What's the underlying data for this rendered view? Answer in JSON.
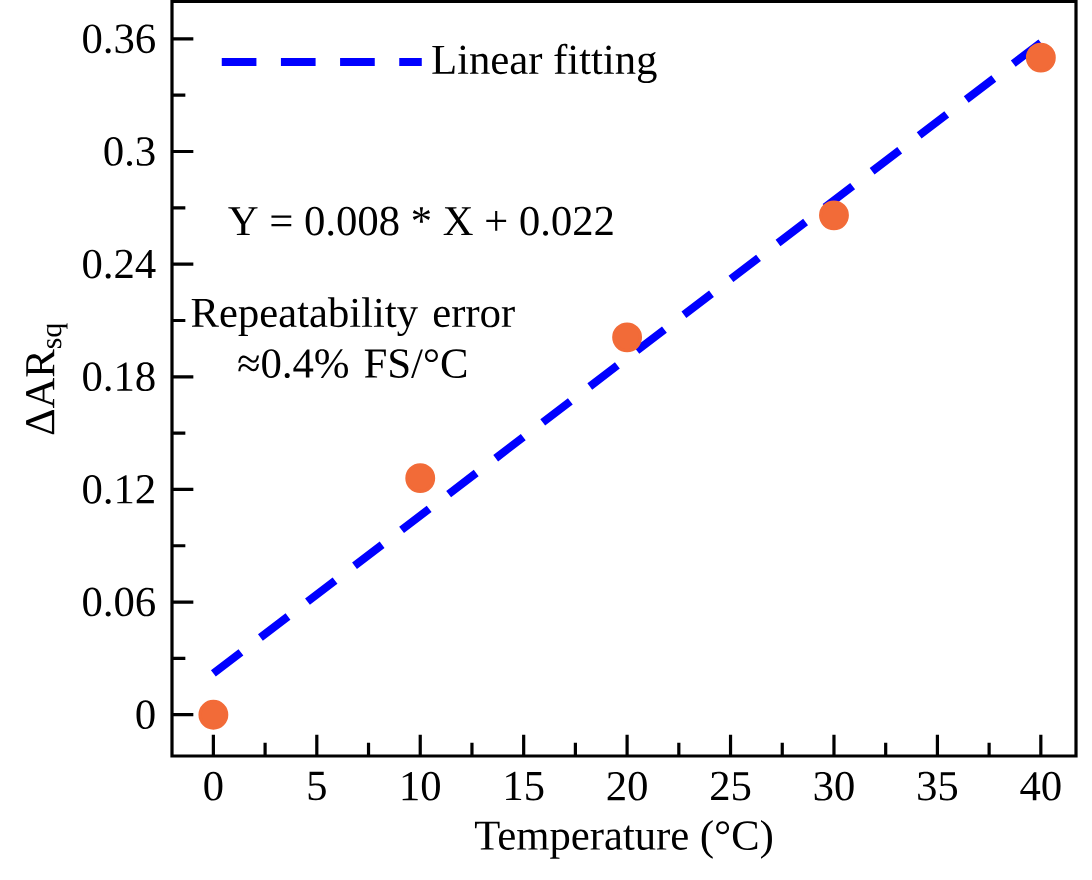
{
  "chart_data": {
    "type": "scatter",
    "xlabel": "Temperature (°C)",
    "ylabel": "ΔAR$_{sq}$",
    "xlim": [
      -2,
      41.7
    ],
    "ylim": [
      -0.022,
      0.38
    ],
    "xticks": [
      0,
      5,
      10,
      15,
      20,
      25,
      30,
      35,
      40
    ],
    "yticks": [
      0,
      0.06,
      0.12,
      0.18,
      0.24,
      0.3,
      0.36
    ],
    "series": [
      {
        "color": "#f26b38",
        "marker": "circle",
        "x": [
          0,
          10,
          20,
          30,
          40
        ],
        "values": [
          0,
          0.126,
          0.201,
          0.266,
          0.35
        ]
      },
      {
        "type": "line",
        "name": "Linear fitting",
        "color": "#0000ff",
        "line_style": "dashed",
        "marker": "none",
        "x": [
          0,
          40
        ],
        "values": [
          0.022,
          0.358
        ]
      }
    ],
    "annotations": [
      "Y = 0.008 * X + 0.022",
      "Repeatability error ≈0.4% FS/°C"
    ],
    "legend": "top left",
    "grid": false
  }
}
